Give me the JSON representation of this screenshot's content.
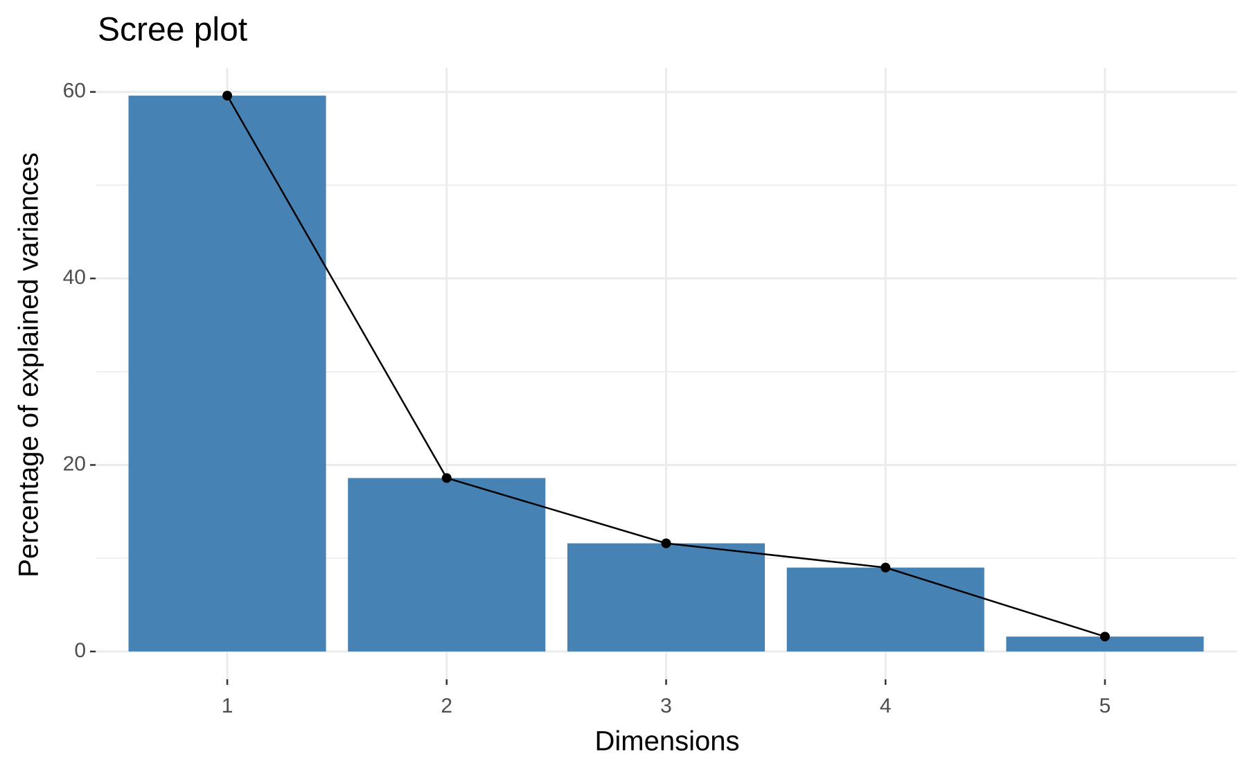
{
  "chart_data": {
    "type": "bar",
    "title": "Scree plot",
    "x_label": "Dimensions",
    "y_label": "Percentage of explained variances",
    "categories": [
      "1",
      "2",
      "3",
      "4",
      "5"
    ],
    "values": [
      59.6,
      18.6,
      11.6,
      9.0,
      1.6
    ],
    "color": "#4682b4",
    "line_color": "#000000",
    "ylim": [
      -2.98,
      62.58
    ],
    "yticks": [
      0,
      20,
      40,
      60
    ],
    "minor_yticks": [
      10,
      30,
      50
    ],
    "grid": true
  }
}
